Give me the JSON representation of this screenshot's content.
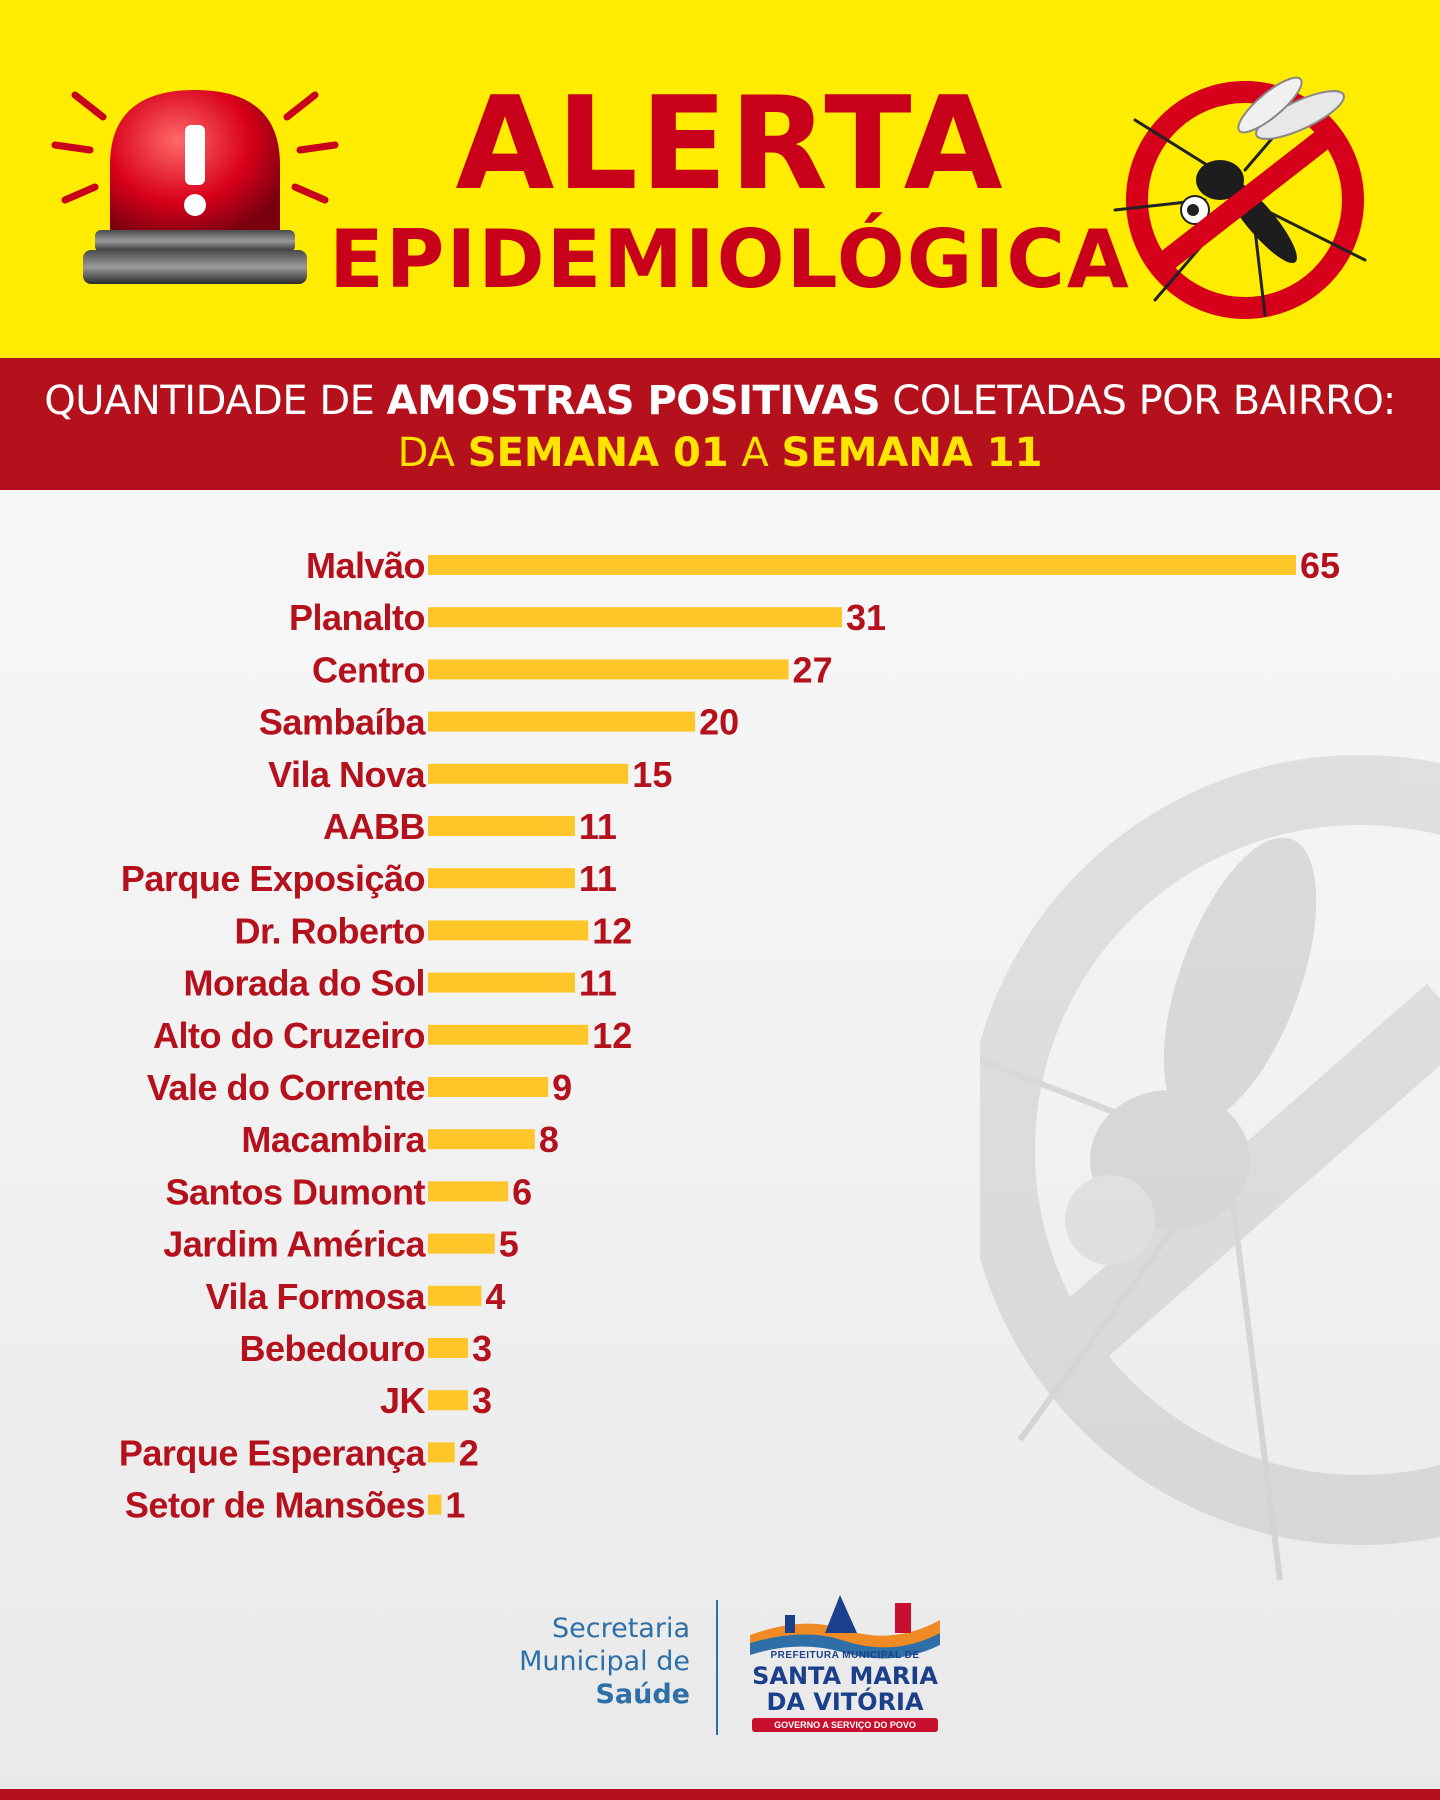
{
  "header": {
    "title_line1": "ALERTA",
    "title_line2": "EPIDEMIOLÓGICA",
    "icons": [
      "siren-icon",
      "no-mosquito-icon"
    ]
  },
  "subtitle": {
    "line1_prefix": "QUANTIDADE DE ",
    "line1_bold": "AMOSTRAS POSITIVAS",
    "line1_suffix": " COLETADAS POR BAIRRO:",
    "line2_prefix": "DA ",
    "line2_bold1": "SEMANA 01",
    "line2_mid": " A ",
    "line2_bold2": "SEMANA 11"
  },
  "chart_data": {
    "type": "bar",
    "orientation": "horizontal",
    "categories": [
      "Malvão",
      "Planalto",
      "Centro",
      "Sambaíba",
      "Vila Nova",
      "AABB",
      "Parque Exposição",
      "Dr. Roberto",
      "Morada do Sol",
      "Alto do Cruzeiro",
      "Vale do Corrente",
      "Macambira",
      "Santos Dumont",
      "Jardim América",
      "Vila Formosa",
      "Bebedouro",
      "JK",
      "Parque Esperança",
      "Setor de Mansões"
    ],
    "values": [
      65,
      31,
      27,
      20,
      15,
      11,
      11,
      12,
      11,
      12,
      9,
      8,
      6,
      5,
      4,
      3,
      3,
      2,
      1
    ],
    "xlim": [
      0,
      65
    ],
    "grid": false,
    "legend": "none",
    "bar_color": "#ffc629",
    "label_color": "#b5111d",
    "value_color": "#b5111d"
  },
  "footer": {
    "secretaria_line1": "Secretaria",
    "secretaria_line2": "Municipal de",
    "secretaria_line3": "Saúde",
    "logo_small": "PREFEITURA MUNICIPAL DE",
    "logo_main1": "SANTA MARIA",
    "logo_main2": "DA VITÓRIA",
    "logo_tagline": "GOVERNO A SERVIÇO DO POVO"
  },
  "colors": {
    "yellow": "#ffec00",
    "red": "#c8001a",
    "band_red": "#b5111d",
    "band_yellow_text": "#ffe400",
    "blue": "#2e6fa7"
  }
}
